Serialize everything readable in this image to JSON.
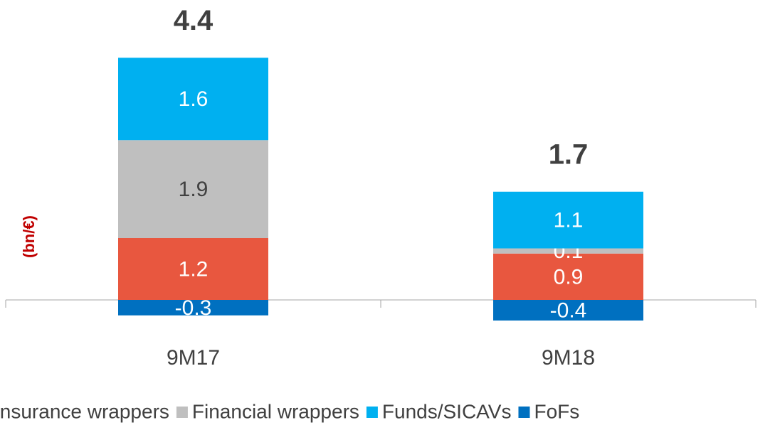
{
  "chart_data": {
    "type": "stacked_bar",
    "y_label": "(bn/€)",
    "categories": [
      "9M17",
      "9M18"
    ],
    "totals": [
      4.4,
      1.7
    ],
    "series": [
      {
        "name": "Insurance wrappers",
        "color": "#e8573f",
        "values": [
          1.2,
          0.9
        ]
      },
      {
        "name": "Financial wrappers",
        "color": "#bfbfbf",
        "values": [
          1.9,
          0.1
        ]
      },
      {
        "name": "Funds/SICAVs",
        "color": "#00b0f0",
        "values": [
          1.6,
          1.1
        ]
      },
      {
        "name": "FoFs",
        "color": "#0070c0",
        "values": [
          -0.3,
          -0.4
        ]
      }
    ],
    "ylim": [
      -1,
      5
    ],
    "legend": "bottom"
  }
}
